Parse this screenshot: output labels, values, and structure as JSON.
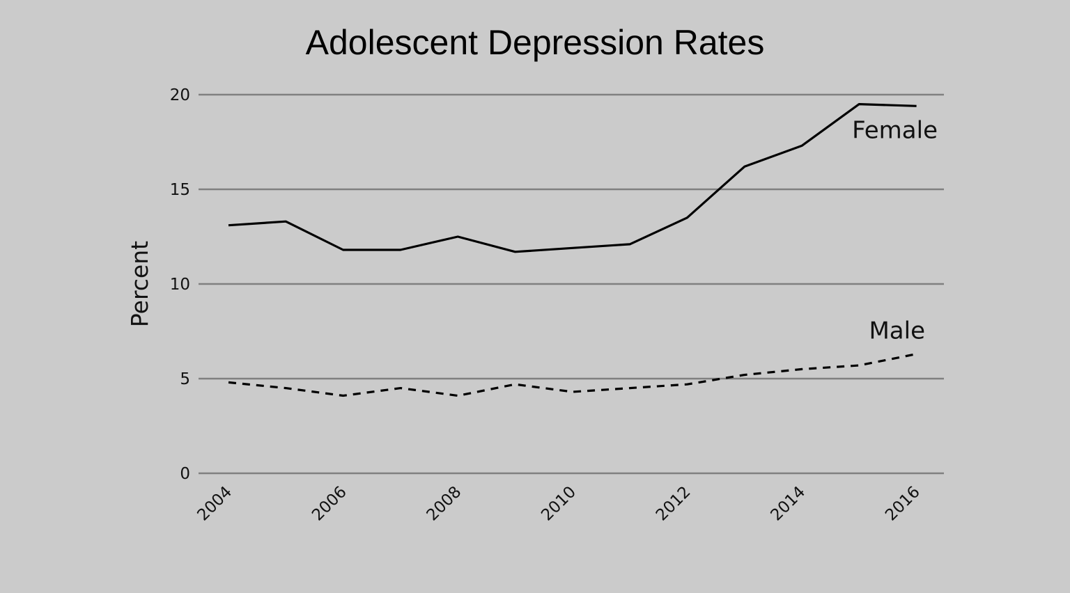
{
  "chart_data": {
    "type": "line",
    "title": "Adolescent Depression Rates",
    "xlabel": "",
    "ylabel": "Percent",
    "ylim": [
      0,
      20
    ],
    "yticks": [
      0,
      5,
      10,
      15,
      20
    ],
    "xticks": [
      2004,
      2006,
      2008,
      2010,
      2012,
      2014,
      2016
    ],
    "xtick_labels": [
      "2004",
      "2006",
      "2008",
      "2010",
      "2012",
      "2014",
      "2016"
    ],
    "grid": true,
    "legend": "none (series labeled directly on lines)",
    "x": [
      2004,
      2005,
      2006,
      2007,
      2008,
      2009,
      2010,
      2011,
      2012,
      2013,
      2014,
      2015,
      2016
    ],
    "series": [
      {
        "name": "Female",
        "style": "solid",
        "values": [
          13.1,
          13.3,
          11.8,
          11.8,
          12.5,
          11.7,
          11.9,
          12.1,
          13.5,
          16.2,
          17.3,
          19.5,
          19.4
        ]
      },
      {
        "name": "Male",
        "style": "dashed",
        "values": [
          4.8,
          4.5,
          4.1,
          4.5,
          4.1,
          4.7,
          4.3,
          4.5,
          4.7,
          5.2,
          5.5,
          5.7,
          6.3
        ]
      }
    ]
  }
}
